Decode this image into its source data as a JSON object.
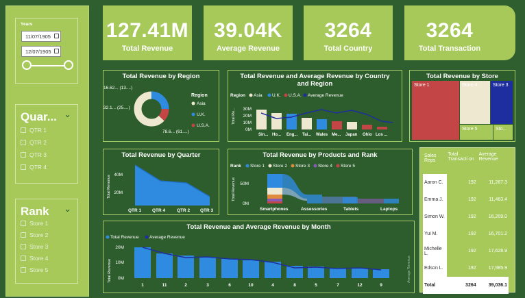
{
  "kpis": [
    {
      "value": "127.41M",
      "label": "Total Revenue"
    },
    {
      "value": "39.04K",
      "label": "Average Revenue"
    },
    {
      "value": "3264",
      "label": "Total Country"
    },
    {
      "value": "3264",
      "label": "Total Transaction"
    }
  ],
  "years_slicer": {
    "title": "Years",
    "start_date": "11/07/1905",
    "end_date": "12/07/1905"
  },
  "quarter_slicer": {
    "title": "Quar...",
    "options": [
      "QTR 1",
      "QTR 2",
      "QTR 3",
      "QTR 4"
    ]
  },
  "rank_slicer": {
    "title": "Rank",
    "options": [
      "Store 1",
      "Store 2",
      "Store 3",
      "Store 4",
      "Store 5"
    ]
  },
  "region_chart": {
    "title": "Total Revenue by Region",
    "legend_title": "Region",
    "legend": [
      "Asia",
      "U.K.",
      "U.S.A."
    ],
    "labels": {
      "usa": "16.62... (13....)",
      "uk": "32.1... (25....)",
      "asia": "78.6... (61....)"
    }
  },
  "country_chart": {
    "title": "Total Revenue and Average Revenue by Country and Region",
    "legend_title": "Region",
    "legend": [
      "Asia",
      "U.K.",
      "U.S.A.",
      "Average Revenue"
    ],
    "ylabel": "Total Re...",
    "ticks": [
      "30M",
      "20M",
      "10M",
      "0M"
    ],
    "categories": [
      "Sin...",
      "Ho...",
      "Eng...",
      "Tai...",
      "Wales",
      "Me...",
      "Japan",
      "Ohio",
      "Los ..."
    ]
  },
  "store_chart": {
    "title": "Total Revenue by Store",
    "labels": [
      "Store 1",
      "Store 4",
      "Store 3",
      "Store 5",
      "Sto..."
    ]
  },
  "quarter_chart": {
    "title": "Total Revenue by Quarter",
    "ylabel": "Total Revenue",
    "ticks": [
      "40M",
      "20M"
    ],
    "categories": [
      "QTR 1",
      "QTR 4",
      "QTR 2",
      "QTR 3"
    ]
  },
  "products_chart": {
    "title": "Total Revenue by Products and Rank",
    "legend_title": "Rank",
    "legend": [
      "Store 1",
      "Store 2",
      "Store 3",
      "Store 4",
      "Store 5"
    ],
    "ylabel": "Total Revenue",
    "ticks": [
      "50M",
      "0M"
    ],
    "categories": [
      "Smartphones",
      "Assessories",
      "Tablets",
      "Laptops"
    ]
  },
  "month_chart": {
    "title": "Total Revenue and Average Revenue by Month",
    "legend": [
      "Total Revenue",
      "Average Revenue"
    ],
    "ylabel": "Total Revenue",
    "ylabel_right": "Average Revenue",
    "ticks": [
      "20M",
      "10M",
      "0M"
    ],
    "categories": [
      "1",
      "11",
      "2",
      "3",
      "6",
      "10",
      "4",
      "8",
      "5",
      "7",
      "12",
      "9"
    ]
  },
  "reps_table": {
    "headers": [
      "Sales Reps",
      "Total Transacti on",
      "Average Revenue"
    ],
    "rows": [
      {
        "name": "Aaron C.",
        "tx": "192",
        "avg": "11,267.3"
      },
      {
        "name": "Emma J.",
        "tx": "192",
        "avg": "11,463.4"
      },
      {
        "name": "Simon W.",
        "tx": "192",
        "avg": "16,209.0"
      },
      {
        "name": "Yui M.",
        "tx": "192",
        "avg": "16,701.2"
      },
      {
        "name": "Michelle L.",
        "tx": "192",
        "avg": "17,628.9"
      },
      {
        "name": "Edson L.",
        "tx": "192",
        "avg": "17,985.9"
      }
    ],
    "total": {
      "label": "Total",
      "tx": "3264",
      "avg": "39,036.1"
    }
  },
  "colors": {
    "background": "#2f5f2e",
    "accent": "#a6c95a",
    "asia": "#efe8d0",
    "uk": "#2e8be0",
    "usa": "#c44545",
    "avg_line": "#1e2e9e"
  }
}
